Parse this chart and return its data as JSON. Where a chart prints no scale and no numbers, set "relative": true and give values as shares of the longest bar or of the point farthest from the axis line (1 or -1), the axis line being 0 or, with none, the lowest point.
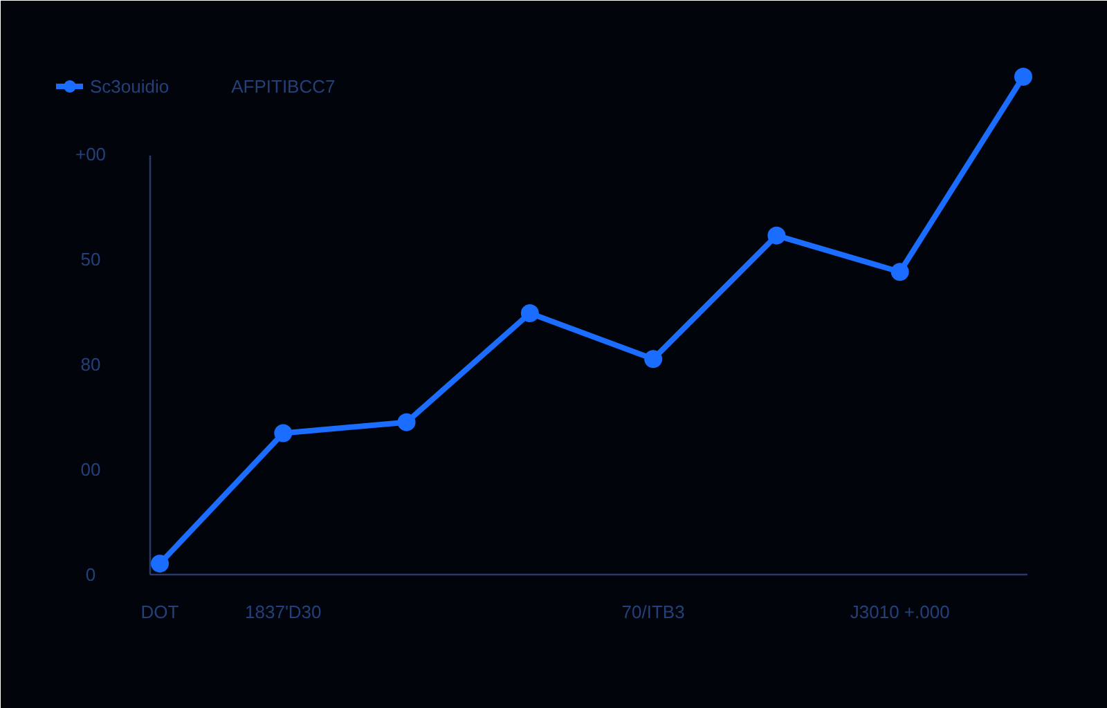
{
  "chart_data": {
    "type": "line",
    "relative": true,
    "categories": [
      "DOT",
      "1837'D30",
      null,
      null,
      "70/ITB3",
      null,
      "J3010 +.000",
      null
    ],
    "series": [
      {
        "name": "Sc3ouidio",
        "color": "#1a6dff",
        "values": [
          0.022,
          0.284,
          0.306,
          0.525,
          0.433,
          0.681,
          0.608,
          1
        ]
      },
      {
        "name": "AFPITIBCC7",
        "color": "#3a4660",
        "values": [
          null,
          null,
          null,
          null,
          null,
          null,
          null,
          null
        ]
      }
    ],
    "annotations": [
      "+00",
      "50",
      "80",
      "00",
      "0"
    ],
    "legend": "top left",
    "marker": "circle",
    "line_style": "solid"
  }
}
